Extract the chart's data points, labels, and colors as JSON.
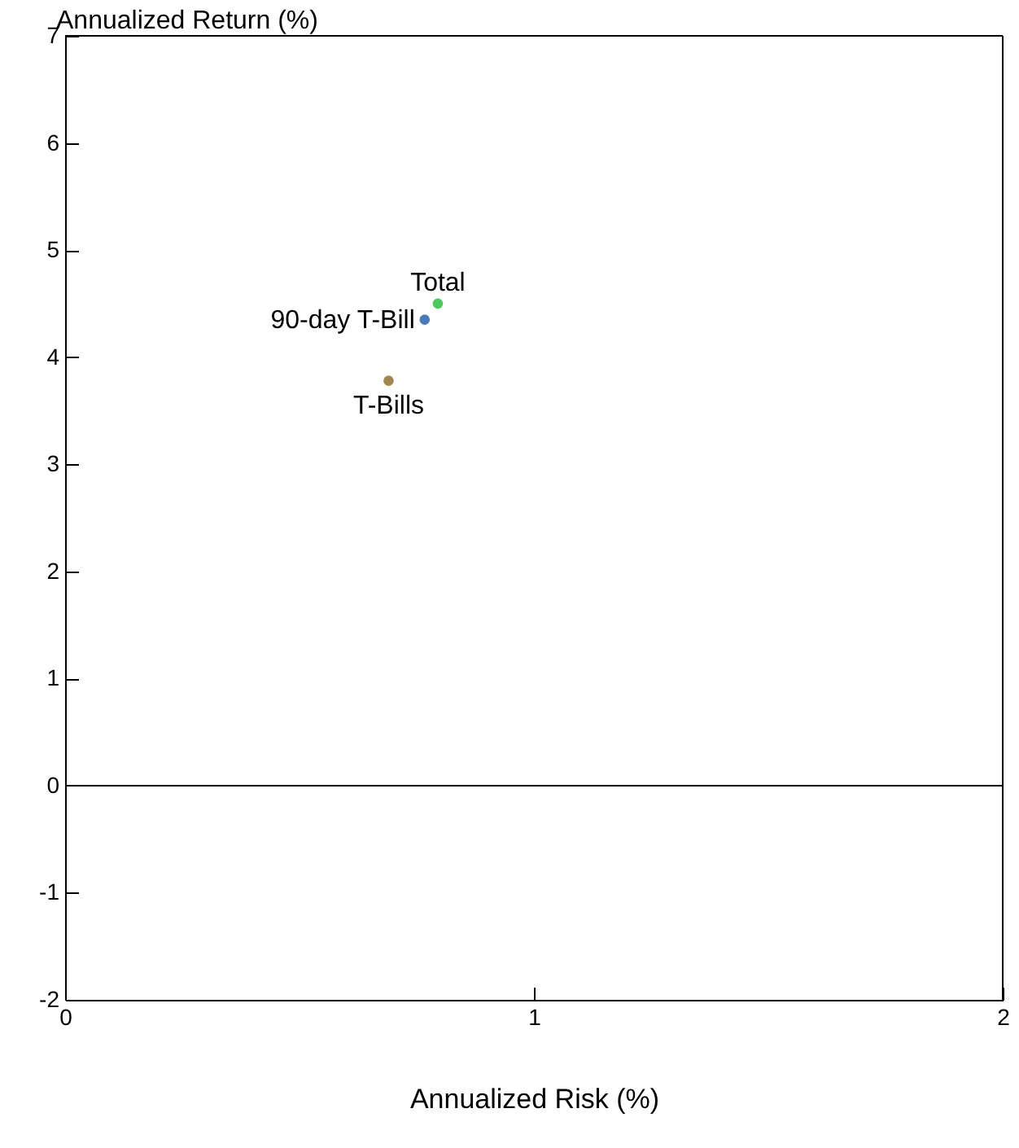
{
  "chart_data": {
    "type": "scatter",
    "xlabel": "Annualized Risk (%)",
    "ylabel": "Annualized Return (%)",
    "series": [
      {
        "name": "Total",
        "color": "#4cc95a",
        "x": [
          0.795
        ],
        "values": [
          4.5
        ]
      },
      {
        "name": "90-day T-Bill",
        "color": "#4a7ab8",
        "x": [
          0.767
        ],
        "values": [
          4.35
        ]
      },
      {
        "name": "T-Bills",
        "color": "#a08850",
        "x": [
          0.69
        ],
        "values": [
          3.78
        ]
      }
    ],
    "xlim": [
      0,
      2
    ],
    "xticks": [
      0,
      1,
      2
    ],
    "ylim": [
      -2,
      7
    ],
    "yticks": [
      -2,
      -1,
      0,
      1,
      2,
      3,
      4,
      5,
      6,
      7
    ],
    "ref_lines": [
      {
        "axis": "y",
        "value": 0,
        "color": "#000000"
      }
    ],
    "grid": false,
    "legend": false,
    "marker": "circle"
  }
}
